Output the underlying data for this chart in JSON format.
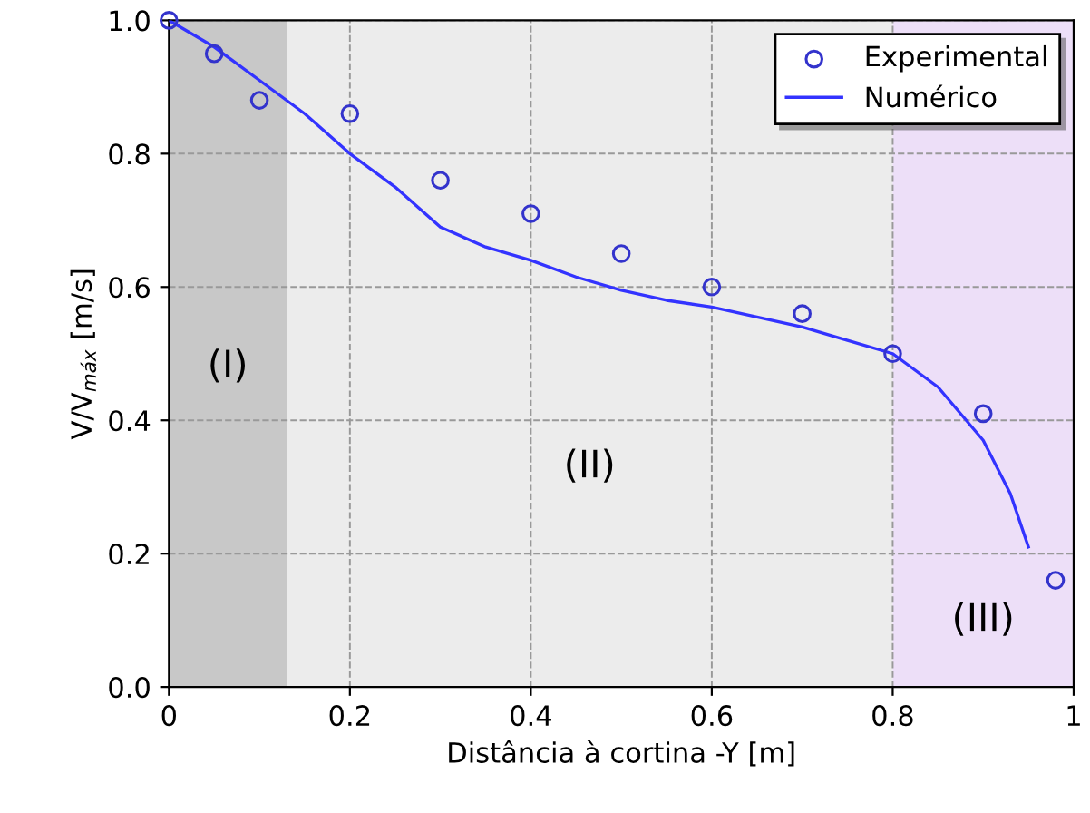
{
  "chart_data": {
    "type": "scatter",
    "xlabel": "Distância à cortina -Y [m]",
    "ylabel": "V/V$_{máx}$ [m/s]",
    "xlim": [
      0,
      1
    ],
    "ylim": [
      0,
      1
    ],
    "xticks": [
      0,
      {
        "value": 0.2,
        "label": "0.2"
      },
      {
        "value": 0.4,
        "label": "0.4"
      },
      {
        "value": 0.6,
        "label": "0.6"
      },
      {
        "value": 0.8,
        "label": "0.8"
      },
      1
    ],
    "yticks": [
      {
        "value": 0,
        "label": "0.0"
      },
      {
        "value": 0.2,
        "label": "0.2"
      },
      {
        "value": 0.4,
        "label": "0.4"
      },
      {
        "value": 0.6,
        "label": "0.6"
      },
      {
        "value": 0.8,
        "label": "0.8"
      },
      {
        "value": 1,
        "label": "1.0"
      }
    ],
    "grid": true,
    "legend": "top right",
    "bands": [
      {
        "axis": "x",
        "from": 0,
        "to": 0.13,
        "label": "(I)",
        "color": "#b0b0b0"
      },
      {
        "axis": "x",
        "from": 0.13,
        "to": 0.8,
        "label": "(II)",
        "color": "#e4e4e4"
      },
      {
        "axis": "x",
        "from": 0.8,
        "to": 1,
        "label": "(III)",
        "color": "#e6d2f5"
      }
    ],
    "series": [
      {
        "name": "Experimental",
        "marker": "circle",
        "color": "#3333cc",
        "x": [
          0,
          0.05,
          0.1,
          0.2,
          0.3,
          0.4,
          0.5,
          0.6,
          0.7,
          0.8,
          0.9,
          0.98
        ],
        "values": [
          1.0,
          0.95,
          0.88,
          0.86,
          0.76,
          0.71,
          0.65,
          0.6,
          0.56,
          0.5,
          0.41,
          0.16
        ]
      },
      {
        "name": "Numérico",
        "type": "line",
        "line_style": "solid",
        "color": "#3333ff",
        "x": [
          0,
          0.05,
          0.1,
          0.15,
          0.2,
          0.25,
          0.3,
          0.35,
          0.4,
          0.45,
          0.5,
          0.55,
          0.6,
          0.65,
          0.7,
          0.75,
          0.8,
          0.85,
          0.9,
          0.93,
          0.95
        ],
        "values": [
          1.0,
          0.96,
          0.91,
          0.86,
          0.8,
          0.75,
          0.69,
          0.66,
          0.64,
          0.615,
          0.595,
          0.58,
          0.57,
          0.555,
          0.54,
          0.52,
          0.5,
          0.45,
          0.37,
          0.29,
          0.21
        ]
      }
    ]
  }
}
